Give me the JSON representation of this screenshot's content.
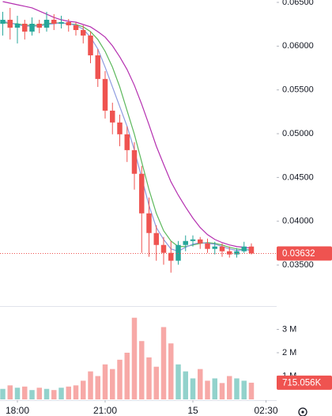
{
  "chart_data": {
    "type": "candlestick",
    "x": [
      17.5,
      17.75,
      18,
      18.25,
      18.5,
      18.75,
      19,
      19.25,
      19.5,
      19.75,
      20,
      20.25,
      20.5,
      20.75,
      21,
      21.25,
      21.5,
      21.75,
      22,
      22.25,
      22.5,
      22.75,
      23,
      23.25,
      23.5,
      23.75,
      24,
      24.25,
      24.5,
      24.75,
      25,
      25.25,
      25.5,
      25.75,
      26
    ],
    "open": [
      0.06256,
      0.06301,
      0.06211,
      0.06256,
      0.06166,
      0.06256,
      0.06211,
      0.06301,
      0.06256,
      0.06274,
      0.06238,
      0.06184,
      0.06121,
      0.05895,
      0.05625,
      0.05263,
      0.05128,
      0.04993,
      0.04812,
      0.04542,
      0.0409,
      0.03865,
      0.03729,
      0.03639,
      0.03549,
      0.03729,
      0.03774,
      0.03792,
      0.03747,
      0.03684,
      0.03711,
      0.03657,
      0.03621,
      0.03657,
      0.03711
    ],
    "high": [
      0.06392,
      0.06437,
      0.06347,
      0.06301,
      0.06328,
      0.06301,
      0.06392,
      0.06365,
      0.06347,
      0.0631,
      0.06274,
      0.06238,
      0.06166,
      0.05967,
      0.05715,
      0.05354,
      0.05218,
      0.05083,
      0.04903,
      0.04632,
      0.04271,
      0.03955,
      0.0382,
      0.03774,
      0.03774,
      0.03838,
      0.03838,
      0.0382,
      0.03801,
      0.03765,
      0.03747,
      0.03711,
      0.03693,
      0.03765,
      0.03747
    ],
    "low": [
      0.06121,
      0.06076,
      0.06031,
      0.06076,
      0.06121,
      0.06148,
      0.06166,
      0.06184,
      0.06202,
      0.06166,
      0.06121,
      0.06031,
      0.05805,
      0.05534,
      0.05173,
      0.04993,
      0.04857,
      0.04677,
      0.04361,
      0.03639,
      0.03594,
      0.03549,
      0.03504,
      0.03413,
      0.03504,
      0.03657,
      0.03711,
      0.03684,
      0.03639,
      0.03621,
      0.03594,
      0.03585,
      0.03585,
      0.03639,
      0.03621
    ],
    "close": [
      0.06301,
      0.06211,
      0.06256,
      0.06166,
      0.06256,
      0.06211,
      0.06301,
      0.06256,
      0.06274,
      0.06238,
      0.06184,
      0.06121,
      0.05895,
      0.05625,
      0.05263,
      0.05128,
      0.04993,
      0.04812,
      0.04542,
      0.0409,
      0.03865,
      0.03729,
      0.03639,
      0.03549,
      0.03729,
      0.03774,
      0.03792,
      0.03747,
      0.03684,
      0.03711,
      0.03657,
      0.03621,
      0.03657,
      0.03711,
      0.03632
    ],
    "volume": [
      450000,
      600000,
      500000,
      550000,
      400000,
      500000,
      450000,
      400000,
      500000,
      550000,
      600000,
      800000,
      1200000,
      1000000,
      1500000,
      1300000,
      1700000,
      2000000,
      3500000,
      2500000,
      1800000,
      1400000,
      3100000,
      2400000,
      1500000,
      1200000,
      900000,
      1300000,
      800000,
      900000,
      700000,
      1000000,
      900000,
      800000,
      715056
    ],
    "moving_averages": [
      {
        "color": "#b52fb0",
        "values": [
          0.06509,
          0.06491,
          0.06473,
          0.06455,
          0.06437,
          0.06401,
          0.06365,
          0.06328,
          0.06301,
          0.06283,
          0.06274,
          0.06247,
          0.0622,
          0.06166,
          0.06103,
          0.06004,
          0.05877,
          0.05733,
          0.05552,
          0.05336,
          0.05101,
          0.04857,
          0.0465,
          0.04451,
          0.04298,
          0.04162,
          0.04036,
          0.03928,
          0.03847,
          0.03792,
          0.03756,
          0.03729,
          0.03711,
          0.03702,
          0.03693
        ]
      },
      {
        "color": "#5cb85c",
        "values": [
          0.06274,
          0.06256,
          0.06256,
          0.06238,
          0.06238,
          0.06238,
          0.06256,
          0.06265,
          0.06265,
          0.06256,
          0.06247,
          0.0622,
          0.06166,
          0.06076,
          0.0594,
          0.0576,
          0.05534,
          0.05263,
          0.04993,
          0.04677,
          0.04361,
          0.0409,
          0.03892,
          0.03774,
          0.03711,
          0.03711,
          0.03729,
          0.03747,
          0.03756,
          0.03747,
          0.03729,
          0.03702,
          0.03684,
          0.03675,
          0.03675
        ]
      },
      {
        "color": "#8e9be0",
        "values": [
          0.06283,
          0.06265,
          0.06247,
          0.06229,
          0.06229,
          0.06229,
          0.06247,
          0.06256,
          0.06265,
          0.06256,
          0.06238,
          0.06193,
          0.06103,
          0.05967,
          0.0576,
          0.05534,
          0.05309,
          0.05083,
          0.04812,
          0.04496,
          0.0418,
          0.03928,
          0.03792,
          0.03684,
          0.03657,
          0.03702,
          0.03738,
          0.03756,
          0.03747,
          0.03738,
          0.03711,
          0.03684,
          0.03666,
          0.03675,
          0.03666
        ]
      }
    ],
    "up_color": "#26a69a",
    "down_color": "#ef5350",
    "xlim": [
      17.405,
      26.865
    ],
    "xticks": [
      {
        "value": 18,
        "label": "18:00"
      },
      {
        "value": 21,
        "label": "21:00"
      },
      {
        "value": 24,
        "label": "15"
      },
      {
        "value": 26.5,
        "label": "02:30"
      }
    ],
    "ylim": [
      0.03031,
      0.06527
    ],
    "yticks": [
      {
        "value": 0.035,
        "label": "0.03500"
      },
      {
        "value": 0.04,
        "label": "0.04000"
      },
      {
        "value": 0.045,
        "label": "0.04500"
      },
      {
        "value": 0.05,
        "label": "0.05000"
      },
      {
        "value": 0.055,
        "label": "0.05500"
      },
      {
        "value": 0.06,
        "label": "0.06000"
      },
      {
        "value": 0.065,
        "label": "0.06500"
      }
    ],
    "volume_ylim": [
      0,
      3966000
    ],
    "volume_yticks": [
      {
        "value": 1000000,
        "label": "1 M"
      },
      {
        "value": 2000000,
        "label": "2 M"
      },
      {
        "value": 3000000,
        "label": "3 M"
      }
    ],
    "last_price": {
      "value": 0.03632,
      "label": "0.03632"
    },
    "last_volume": {
      "value": 715056,
      "label": "715.056K"
    }
  }
}
